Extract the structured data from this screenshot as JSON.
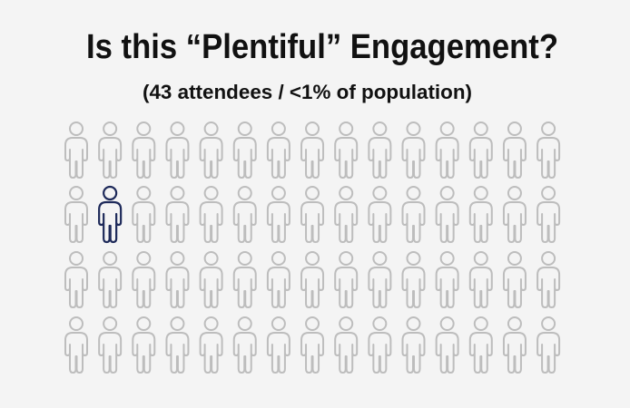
{
  "header": {
    "title": "Is this “Plentiful” Engagement?",
    "subtitle": "(43 attendees / <1% of population)"
  }
}
